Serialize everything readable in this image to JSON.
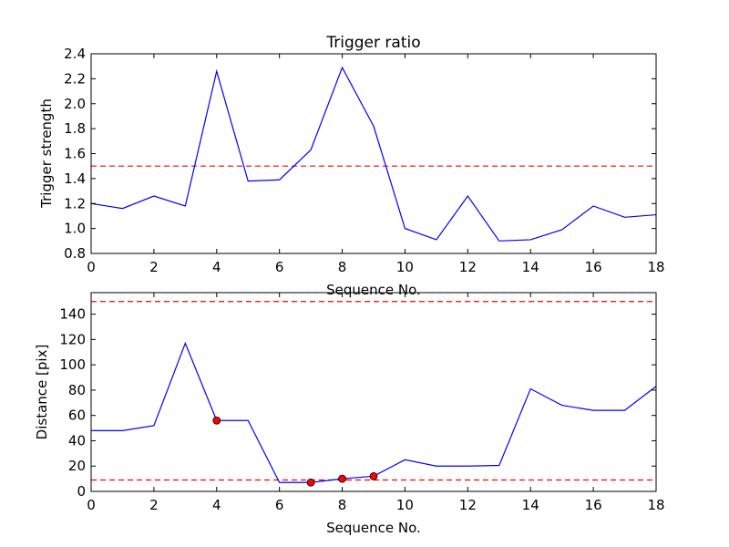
{
  "chart_data": [
    {
      "type": "line",
      "title": "Trigger ratio",
      "xlabel": "Sequence No.",
      "ylabel": "Trigger strength",
      "xlim": [
        0,
        18
      ],
      "ylim": [
        0.8,
        2.4
      ],
      "xticks": [
        0,
        2,
        4,
        6,
        8,
        10,
        12,
        14,
        16,
        18
      ],
      "yticks": [
        0.8,
        1.0,
        1.2,
        1.4,
        1.6,
        1.8,
        2.0,
        2.2,
        2.4
      ],
      "ytick_format": 1,
      "grid": false,
      "series": [
        {
          "color": "#0000ff",
          "x": [
            0,
            1,
            2,
            3,
            4,
            5,
            6,
            7,
            8,
            9,
            10,
            11,
            12,
            13,
            14,
            15,
            16,
            17,
            18
          ],
          "y": [
            1.2,
            1.16,
            1.26,
            1.18,
            2.26,
            1.38,
            1.39,
            1.63,
            2.29,
            1.82,
            1.0,
            0.91,
            1.26,
            0.9,
            0.91,
            0.99,
            1.18,
            1.09,
            1.11
          ]
        }
      ],
      "hlines": [
        {
          "y": 1.5,
          "color": "#ff0000",
          "style": "dashed"
        }
      ],
      "markers": []
    },
    {
      "type": "line",
      "title": "",
      "xlabel": "Sequence No.",
      "ylabel": "Distance [pix]",
      "xlim": [
        0,
        18
      ],
      "ylim": [
        0,
        157
      ],
      "xticks": [
        0,
        2,
        4,
        6,
        8,
        10,
        12,
        14,
        16,
        18
      ],
      "yticks": [
        0,
        20,
        40,
        60,
        80,
        100,
        120,
        140
      ],
      "ytick_format": 0,
      "grid": false,
      "series": [
        {
          "color": "#0000ff",
          "x": [
            0,
            1,
            2,
            3,
            4,
            5,
            6,
            7,
            8,
            9,
            10,
            11,
            12,
            13,
            14,
            15,
            16,
            17,
            18
          ],
          "y": [
            48,
            48,
            52,
            117,
            56,
            56,
            7,
            7,
            10,
            12,
            25,
            20,
            20,
            20.5,
            81,
            68,
            64,
            64,
            83
          ]
        }
      ],
      "hlines": [
        {
          "y": 150,
          "color": "#ff0000",
          "style": "dashed"
        },
        {
          "y": 9,
          "color": "#ff0000",
          "style": "dashed"
        }
      ],
      "markers": [
        {
          "x": 4,
          "y": 56,
          "color": "#ff0000"
        },
        {
          "x": 7,
          "y": 7,
          "color": "#ff0000"
        },
        {
          "x": 8,
          "y": 10,
          "color": "#ff0000"
        },
        {
          "x": 9,
          "y": 12,
          "color": "#ff0000"
        }
      ]
    }
  ]
}
